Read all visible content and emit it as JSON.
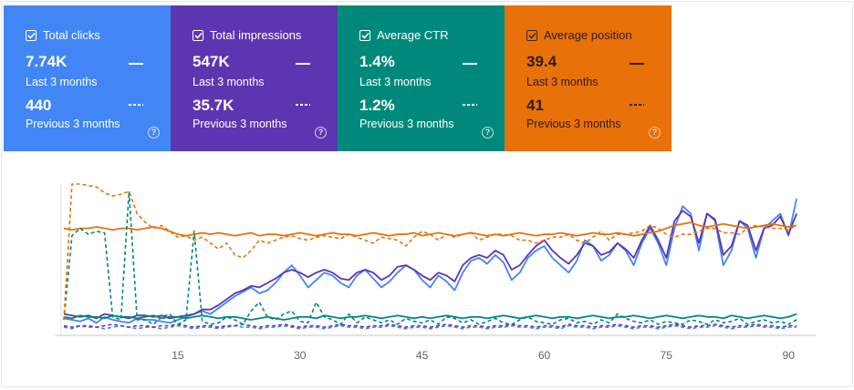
{
  "cards": [
    {
      "key": "clicks",
      "title": "Total clicks",
      "current": "7.74K",
      "current_label": "Last 3 months",
      "previous": "440",
      "previous_label": "Previous 3 months",
      "color": "#4285f4",
      "checked": true,
      "help_icon": "help-circle-icon"
    },
    {
      "key": "impressions",
      "title": "Total impressions",
      "current": "547K",
      "current_label": "Last 3 months",
      "previous": "35.7K",
      "previous_label": "Previous 3 months",
      "color": "#5e35b1",
      "checked": true,
      "help_icon": "help-circle-icon"
    },
    {
      "key": "ctr",
      "title": "Average CTR",
      "current": "1.4%",
      "current_label": "Last 3 months",
      "previous": "1.2%",
      "previous_label": "Previous 3 months",
      "color": "#00897b",
      "checked": true,
      "help_icon": "help-circle-icon"
    },
    {
      "key": "position",
      "title": "Average position",
      "current": "39.4",
      "current_label": "Last 3 months",
      "previous": "41",
      "previous_label": "Previous 3 months",
      "color": "#e8710a",
      "checked": true,
      "help_icon": "help-circle-icon"
    }
  ],
  "chart_data": {
    "type": "line",
    "x_ticks": [
      15,
      30,
      45,
      60,
      75,
      90
    ],
    "xlim": [
      1,
      92
    ],
    "ylim": [
      0,
      100
    ],
    "y_scale_note": "normalized per series",
    "grid": false,
    "legend": "none",
    "series": [
      {
        "metric": "clicks",
        "period": "current",
        "style": "solid",
        "color": "#4285f4",
        "values": [
          9,
          8,
          7,
          9,
          6,
          10,
          8,
          7,
          6,
          9,
          8,
          8,
          7,
          6,
          8,
          10,
          12,
          14,
          12,
          16,
          20,
          24,
          27,
          30,
          26,
          28,
          33,
          40,
          45,
          38,
          30,
          35,
          40,
          38,
          33,
          30,
          38,
          42,
          36,
          30,
          34,
          40,
          45,
          42,
          35,
          30,
          38,
          34,
          28,
          40,
          48,
          50,
          46,
          52,
          47,
          35,
          40,
          50,
          55,
          58,
          50,
          45,
          40,
          48,
          62,
          58,
          48,
          52,
          60,
          55,
          45,
          60,
          70,
          60,
          45,
          70,
          85,
          80,
          55,
          80,
          75,
          45,
          55,
          75,
          70,
          50,
          70,
          75,
          80,
          65,
          90
        ]
      },
      {
        "metric": "impressions",
        "period": "current",
        "style": "solid",
        "color": "#5e35b1",
        "values": [
          12,
          11,
          10,
          11,
          9,
          12,
          11,
          10,
          9,
          11,
          11,
          10,
          11,
          9,
          10,
          11,
          12,
          15,
          15,
          18,
          22,
          26,
          28,
          31,
          30,
          33,
          36,
          40,
          42,
          40,
          37,
          40,
          42,
          40,
          36,
          35,
          40,
          42,
          40,
          35,
          38,
          44,
          45,
          42,
          38,
          35,
          40,
          38,
          34,
          45,
          50,
          52,
          50,
          55,
          52,
          42,
          45,
          52,
          58,
          62,
          55,
          50,
          46,
          52,
          60,
          58,
          52,
          54,
          60,
          56,
          50,
          62,
          72,
          62,
          50,
          75,
          82,
          78,
          60,
          80,
          76,
          52,
          58,
          75,
          72,
          55,
          70,
          72,
          78,
          66,
          80
        ]
      },
      {
        "metric": "ctr",
        "period": "current",
        "style": "solid",
        "color": "#00897b",
        "values": [
          10,
          9,
          11,
          10,
          10,
          9,
          11,
          10,
          10,
          9,
          10,
          11,
          9,
          10,
          10,
          9,
          10,
          11,
          10,
          9,
          10,
          10,
          9,
          8,
          9,
          10,
          9,
          8,
          9,
          10,
          10,
          9,
          11,
          10,
          9,
          10,
          10,
          11,
          10,
          9,
          10,
          11,
          10,
          9,
          10,
          9,
          10,
          11,
          10,
          9,
          10,
          10,
          9,
          10,
          11,
          10,
          9,
          10,
          11,
          10,
          9,
          10,
          10,
          9,
          10,
          11,
          10,
          9,
          10,
          10,
          11,
          10,
          9,
          10,
          11,
          10,
          9,
          10,
          11,
          10,
          10,
          9,
          11,
          10,
          9,
          10,
          11,
          10,
          9,
          10,
          12
        ]
      },
      {
        "metric": "position",
        "period": "current",
        "style": "solid",
        "color": "#e8710a",
        "values": [
          70,
          69,
          70,
          70,
          71,
          70,
          69,
          70,
          70,
          69,
          70,
          71,
          70,
          68,
          66,
          65,
          66,
          67,
          66,
          67,
          66,
          65,
          66,
          67,
          65,
          66,
          66,
          65,
          66,
          67,
          66,
          65,
          66,
          67,
          66,
          66,
          65,
          66,
          67,
          66,
          65,
          66,
          66,
          67,
          65,
          66,
          67,
          66,
          65,
          66,
          67,
          66,
          65,
          66,
          65,
          66,
          67,
          66,
          65,
          66,
          66,
          67,
          66,
          65,
          66,
          67,
          66,
          66,
          67,
          66,
          65,
          66,
          67,
          68,
          70,
          72,
          73,
          74,
          72,
          71,
          72,
          73,
          72,
          71,
          70,
          71,
          72,
          73,
          72,
          71,
          72
        ]
      },
      {
        "metric": "clicks",
        "period": "previous",
        "style": "dashed",
        "color": "#4285f4",
        "values": [
          3,
          2,
          4,
          3,
          3,
          2,
          3,
          4,
          3,
          2,
          3,
          3,
          2,
          3,
          4,
          3,
          2,
          3,
          3,
          2,
          3,
          4,
          3,
          3,
          2,
          3,
          3,
          4,
          3,
          2,
          3,
          3,
          2,
          3,
          4,
          3,
          3,
          2,
          3,
          3,
          4,
          3,
          2,
          3,
          3,
          2,
          3,
          4,
          3,
          2,
          3,
          3,
          2,
          3,
          3,
          4,
          3,
          3,
          2,
          3,
          3,
          2,
          4,
          3,
          3,
          2,
          3,
          3,
          4,
          3,
          2,
          3,
          3,
          2,
          3,
          4,
          3,
          2,
          3,
          3,
          4,
          3,
          2,
          3,
          3,
          4,
          3,
          3,
          2,
          3,
          3
        ]
      },
      {
        "metric": "impressions",
        "period": "previous",
        "style": "dashed",
        "color": "#5e35b1",
        "values": [
          4,
          3,
          4,
          4,
          3,
          4,
          5,
          4,
          3,
          4,
          4,
          3,
          4,
          4,
          5,
          4,
          3,
          4,
          4,
          3,
          4,
          4,
          5,
          4,
          3,
          4,
          4,
          5,
          4,
          3,
          4,
          4,
          3,
          4,
          5,
          4,
          4,
          3,
          4,
          4,
          5,
          4,
          3,
          4,
          4,
          3,
          4,
          5,
          4,
          3,
          4,
          4,
          3,
          4,
          4,
          5,
          4,
          4,
          3,
          4,
          4,
          3,
          5,
          4,
          4,
          3,
          4,
          4,
          5,
          4,
          3,
          4,
          4,
          3,
          4,
          5,
          4,
          3,
          4,
          4,
          5,
          4,
          3,
          4,
          4,
          5,
          4,
          4,
          3,
          4,
          4
        ]
      },
      {
        "metric": "ctr",
        "period": "previous",
        "style": "dashed",
        "color": "#00897b",
        "values": [
          8,
          65,
          70,
          66,
          68,
          67,
          10,
          8,
          95,
          8,
          8,
          5,
          10,
          12,
          5,
          8,
          68,
          7,
          5,
          6,
          10,
          8,
          5,
          14,
          20,
          10,
          8,
          12,
          14,
          7,
          6,
          20,
          10,
          8,
          5,
          12,
          6,
          10,
          8,
          6,
          8,
          5,
          9,
          7,
          6,
          8,
          5,
          10,
          9,
          6,
          8,
          5,
          7,
          9,
          6,
          5,
          8,
          10,
          7,
          6,
          5,
          8,
          9,
          6,
          7,
          5,
          8,
          6,
          12,
          9,
          7,
          6,
          8,
          5,
          7,
          6,
          5,
          8,
          7,
          5,
          8,
          6,
          7,
          9,
          5,
          7,
          8,
          6,
          7,
          5,
          8
        ]
      },
      {
        "metric": "position",
        "period": "previous",
        "style": "dashed",
        "color": "#e8710a",
        "values": [
          8,
          100,
          100,
          99,
          98,
          94,
          92,
          93,
          95,
          80,
          74,
          70,
          72,
          68,
          64,
          65,
          62,
          64,
          60,
          56,
          60,
          52,
          50,
          55,
          62,
          60,
          62,
          64,
          65,
          63,
          62,
          64,
          65,
          64,
          63,
          66,
          64,
          62,
          60,
          64,
          63,
          62,
          58,
          64,
          68,
          66,
          62,
          66,
          64,
          66,
          67,
          62,
          64,
          66,
          66,
          65,
          62,
          62,
          60,
          62,
          64,
          64,
          66,
          62,
          60,
          64,
          68,
          62,
          66,
          66,
          67,
          68,
          72,
          70,
          66,
          64,
          66,
          66,
          68,
          70,
          70,
          67,
          67,
          66,
          70,
          72,
          71,
          70,
          70,
          69,
          72
        ]
      }
    ]
  }
}
